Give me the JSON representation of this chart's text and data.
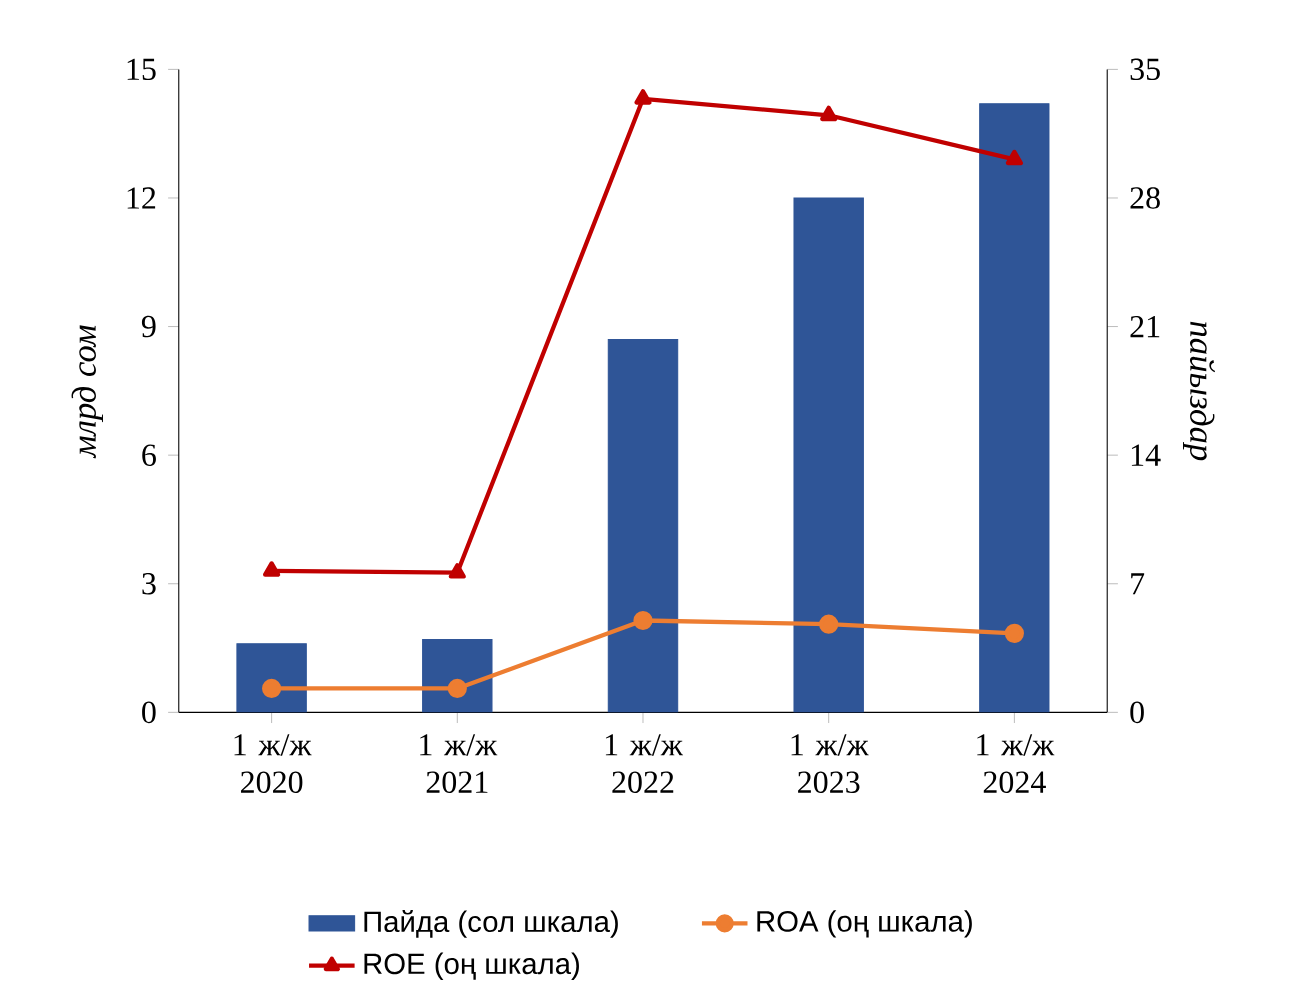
{
  "chart_data": {
    "type": "bar",
    "categories": [
      "1 ж/ж 2020",
      "1 ж/ж 2021",
      "1 ж/ж 2022",
      "1 ж/ж 2023",
      "1 ж/ж 2024"
    ],
    "ylabel": "млрд сом",
    "y2label": "пайыздар",
    "ylim": [
      0,
      15
    ],
    "yticks": [
      0,
      3,
      6,
      9,
      12,
      15
    ],
    "y2lim": [
      0,
      35
    ],
    "y2ticks": [
      0,
      7,
      14,
      21,
      28,
      35
    ],
    "legend": "bottom",
    "series": [
      {
        "name": "Пайда (сол шкала)",
        "color": "#2f5597",
        "values": [
          1.6,
          1.7,
          8.7,
          12.0,
          14.2
        ]
      },
      {
        "name": "ROA (оң шкала)",
        "type": "line",
        "axis": "y2",
        "marker": "circle",
        "color": "#ed7d31",
        "values": [
          1.3,
          1.3,
          5.0,
          4.8,
          4.3
        ]
      },
      {
        "name": "ROE (оң шкала)",
        "type": "line",
        "axis": "y2",
        "marker": "triangle",
        "color": "#c00000",
        "values": [
          7.7,
          7.6,
          33.4,
          32.5,
          30.1
        ]
      }
    ]
  }
}
